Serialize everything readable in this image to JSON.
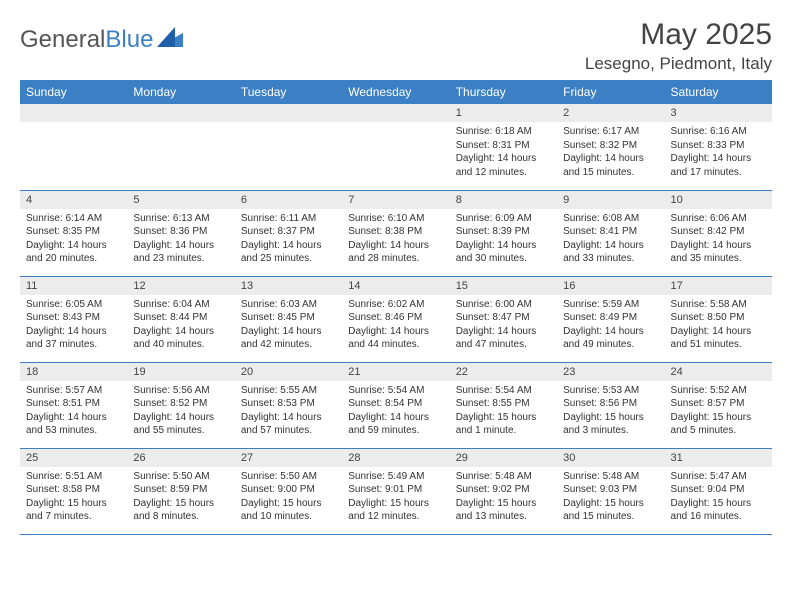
{
  "brand": {
    "part1": "General",
    "part2": "Blue"
  },
  "header": {
    "title": "May 2025",
    "location": "Lesegno, Piedmont, Italy"
  },
  "colors": {
    "header_bg": "#3b7fc4",
    "header_text": "#ffffff",
    "daynum_bg": "#ececec",
    "border": "#3b7fc4",
    "text": "#333333"
  },
  "calendar": {
    "day_headers": [
      "Sunday",
      "Monday",
      "Tuesday",
      "Wednesday",
      "Thursday",
      "Friday",
      "Saturday"
    ],
    "weeks": [
      [
        {
          "num": "",
          "lines": []
        },
        {
          "num": "",
          "lines": []
        },
        {
          "num": "",
          "lines": []
        },
        {
          "num": "",
          "lines": []
        },
        {
          "num": "1",
          "lines": [
            "Sunrise: 6:18 AM",
            "Sunset: 8:31 PM",
            "Daylight: 14 hours",
            "and 12 minutes."
          ]
        },
        {
          "num": "2",
          "lines": [
            "Sunrise: 6:17 AM",
            "Sunset: 8:32 PM",
            "Daylight: 14 hours",
            "and 15 minutes."
          ]
        },
        {
          "num": "3",
          "lines": [
            "Sunrise: 6:16 AM",
            "Sunset: 8:33 PM",
            "Daylight: 14 hours",
            "and 17 minutes."
          ]
        }
      ],
      [
        {
          "num": "4",
          "lines": [
            "Sunrise: 6:14 AM",
            "Sunset: 8:35 PM",
            "Daylight: 14 hours",
            "and 20 minutes."
          ]
        },
        {
          "num": "5",
          "lines": [
            "Sunrise: 6:13 AM",
            "Sunset: 8:36 PM",
            "Daylight: 14 hours",
            "and 23 minutes."
          ]
        },
        {
          "num": "6",
          "lines": [
            "Sunrise: 6:11 AM",
            "Sunset: 8:37 PM",
            "Daylight: 14 hours",
            "and 25 minutes."
          ]
        },
        {
          "num": "7",
          "lines": [
            "Sunrise: 6:10 AM",
            "Sunset: 8:38 PM",
            "Daylight: 14 hours",
            "and 28 minutes."
          ]
        },
        {
          "num": "8",
          "lines": [
            "Sunrise: 6:09 AM",
            "Sunset: 8:39 PM",
            "Daylight: 14 hours",
            "and 30 minutes."
          ]
        },
        {
          "num": "9",
          "lines": [
            "Sunrise: 6:08 AM",
            "Sunset: 8:41 PM",
            "Daylight: 14 hours",
            "and 33 minutes."
          ]
        },
        {
          "num": "10",
          "lines": [
            "Sunrise: 6:06 AM",
            "Sunset: 8:42 PM",
            "Daylight: 14 hours",
            "and 35 minutes."
          ]
        }
      ],
      [
        {
          "num": "11",
          "lines": [
            "Sunrise: 6:05 AM",
            "Sunset: 8:43 PM",
            "Daylight: 14 hours",
            "and 37 minutes."
          ]
        },
        {
          "num": "12",
          "lines": [
            "Sunrise: 6:04 AM",
            "Sunset: 8:44 PM",
            "Daylight: 14 hours",
            "and 40 minutes."
          ]
        },
        {
          "num": "13",
          "lines": [
            "Sunrise: 6:03 AM",
            "Sunset: 8:45 PM",
            "Daylight: 14 hours",
            "and 42 minutes."
          ]
        },
        {
          "num": "14",
          "lines": [
            "Sunrise: 6:02 AM",
            "Sunset: 8:46 PM",
            "Daylight: 14 hours",
            "and 44 minutes."
          ]
        },
        {
          "num": "15",
          "lines": [
            "Sunrise: 6:00 AM",
            "Sunset: 8:47 PM",
            "Daylight: 14 hours",
            "and 47 minutes."
          ]
        },
        {
          "num": "16",
          "lines": [
            "Sunrise: 5:59 AM",
            "Sunset: 8:49 PM",
            "Daylight: 14 hours",
            "and 49 minutes."
          ]
        },
        {
          "num": "17",
          "lines": [
            "Sunrise: 5:58 AM",
            "Sunset: 8:50 PM",
            "Daylight: 14 hours",
            "and 51 minutes."
          ]
        }
      ],
      [
        {
          "num": "18",
          "lines": [
            "Sunrise: 5:57 AM",
            "Sunset: 8:51 PM",
            "Daylight: 14 hours",
            "and 53 minutes."
          ]
        },
        {
          "num": "19",
          "lines": [
            "Sunrise: 5:56 AM",
            "Sunset: 8:52 PM",
            "Daylight: 14 hours",
            "and 55 minutes."
          ]
        },
        {
          "num": "20",
          "lines": [
            "Sunrise: 5:55 AM",
            "Sunset: 8:53 PM",
            "Daylight: 14 hours",
            "and 57 minutes."
          ]
        },
        {
          "num": "21",
          "lines": [
            "Sunrise: 5:54 AM",
            "Sunset: 8:54 PM",
            "Daylight: 14 hours",
            "and 59 minutes."
          ]
        },
        {
          "num": "22",
          "lines": [
            "Sunrise: 5:54 AM",
            "Sunset: 8:55 PM",
            "Daylight: 15 hours",
            "and 1 minute."
          ]
        },
        {
          "num": "23",
          "lines": [
            "Sunrise: 5:53 AM",
            "Sunset: 8:56 PM",
            "Daylight: 15 hours",
            "and 3 minutes."
          ]
        },
        {
          "num": "24",
          "lines": [
            "Sunrise: 5:52 AM",
            "Sunset: 8:57 PM",
            "Daylight: 15 hours",
            "and 5 minutes."
          ]
        }
      ],
      [
        {
          "num": "25",
          "lines": [
            "Sunrise: 5:51 AM",
            "Sunset: 8:58 PM",
            "Daylight: 15 hours",
            "and 7 minutes."
          ]
        },
        {
          "num": "26",
          "lines": [
            "Sunrise: 5:50 AM",
            "Sunset: 8:59 PM",
            "Daylight: 15 hours",
            "and 8 minutes."
          ]
        },
        {
          "num": "27",
          "lines": [
            "Sunrise: 5:50 AM",
            "Sunset: 9:00 PM",
            "Daylight: 15 hours",
            "and 10 minutes."
          ]
        },
        {
          "num": "28",
          "lines": [
            "Sunrise: 5:49 AM",
            "Sunset: 9:01 PM",
            "Daylight: 15 hours",
            "and 12 minutes."
          ]
        },
        {
          "num": "29",
          "lines": [
            "Sunrise: 5:48 AM",
            "Sunset: 9:02 PM",
            "Daylight: 15 hours",
            "and 13 minutes."
          ]
        },
        {
          "num": "30",
          "lines": [
            "Sunrise: 5:48 AM",
            "Sunset: 9:03 PM",
            "Daylight: 15 hours",
            "and 15 minutes."
          ]
        },
        {
          "num": "31",
          "lines": [
            "Sunrise: 5:47 AM",
            "Sunset: 9:04 PM",
            "Daylight: 15 hours",
            "and 16 minutes."
          ]
        }
      ]
    ]
  }
}
